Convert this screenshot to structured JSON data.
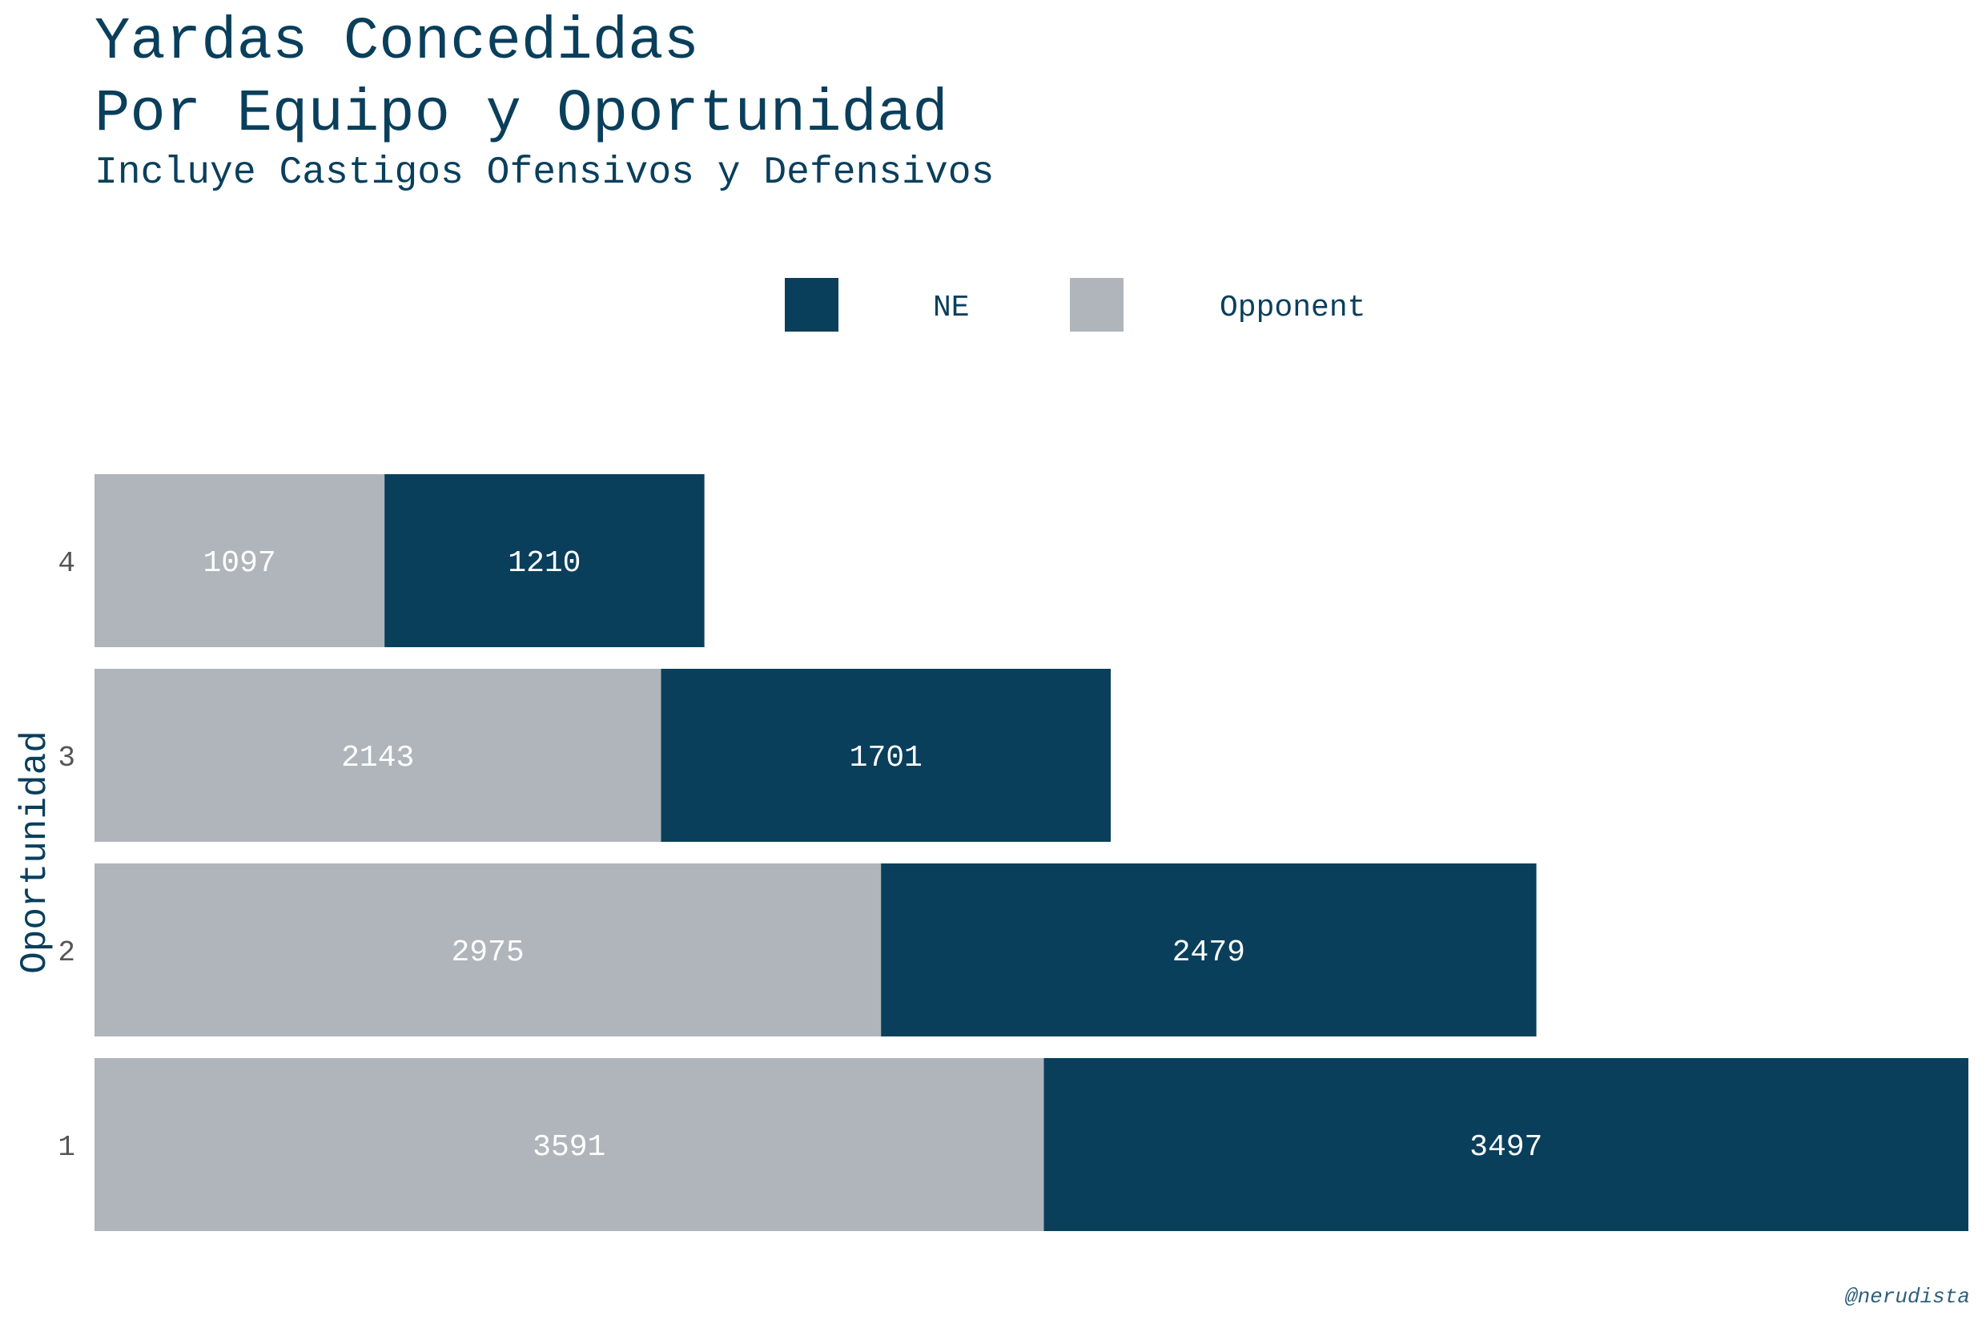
{
  "chart_data": {
    "type": "bar",
    "orientation": "horizontal",
    "stacked": true,
    "title_lines": [
      "Yardas Concedidas",
      "Por Equipo y Oportunidad"
    ],
    "subtitle": "Incluye Castigos Ofensivos y Defensivos",
    "xlabel": "",
    "ylabel": "Oportunidad",
    "categories": [
      "1",
      "2",
      "3",
      "4"
    ],
    "series": [
      {
        "name": "Opponent",
        "color": "#afb5ba",
        "values": [
          3591,
          2975,
          2143,
          1097
        ]
      },
      {
        "name": "NE",
        "color": "#0a3f5c",
        "values": [
          3497,
          2479,
          1701,
          1210
        ]
      }
    ],
    "legend": {
      "position": "top",
      "order": [
        "NE",
        "Opponent"
      ]
    },
    "xlim": [
      0,
      7088
    ],
    "grid": false,
    "caption": "@nerudista"
  }
}
